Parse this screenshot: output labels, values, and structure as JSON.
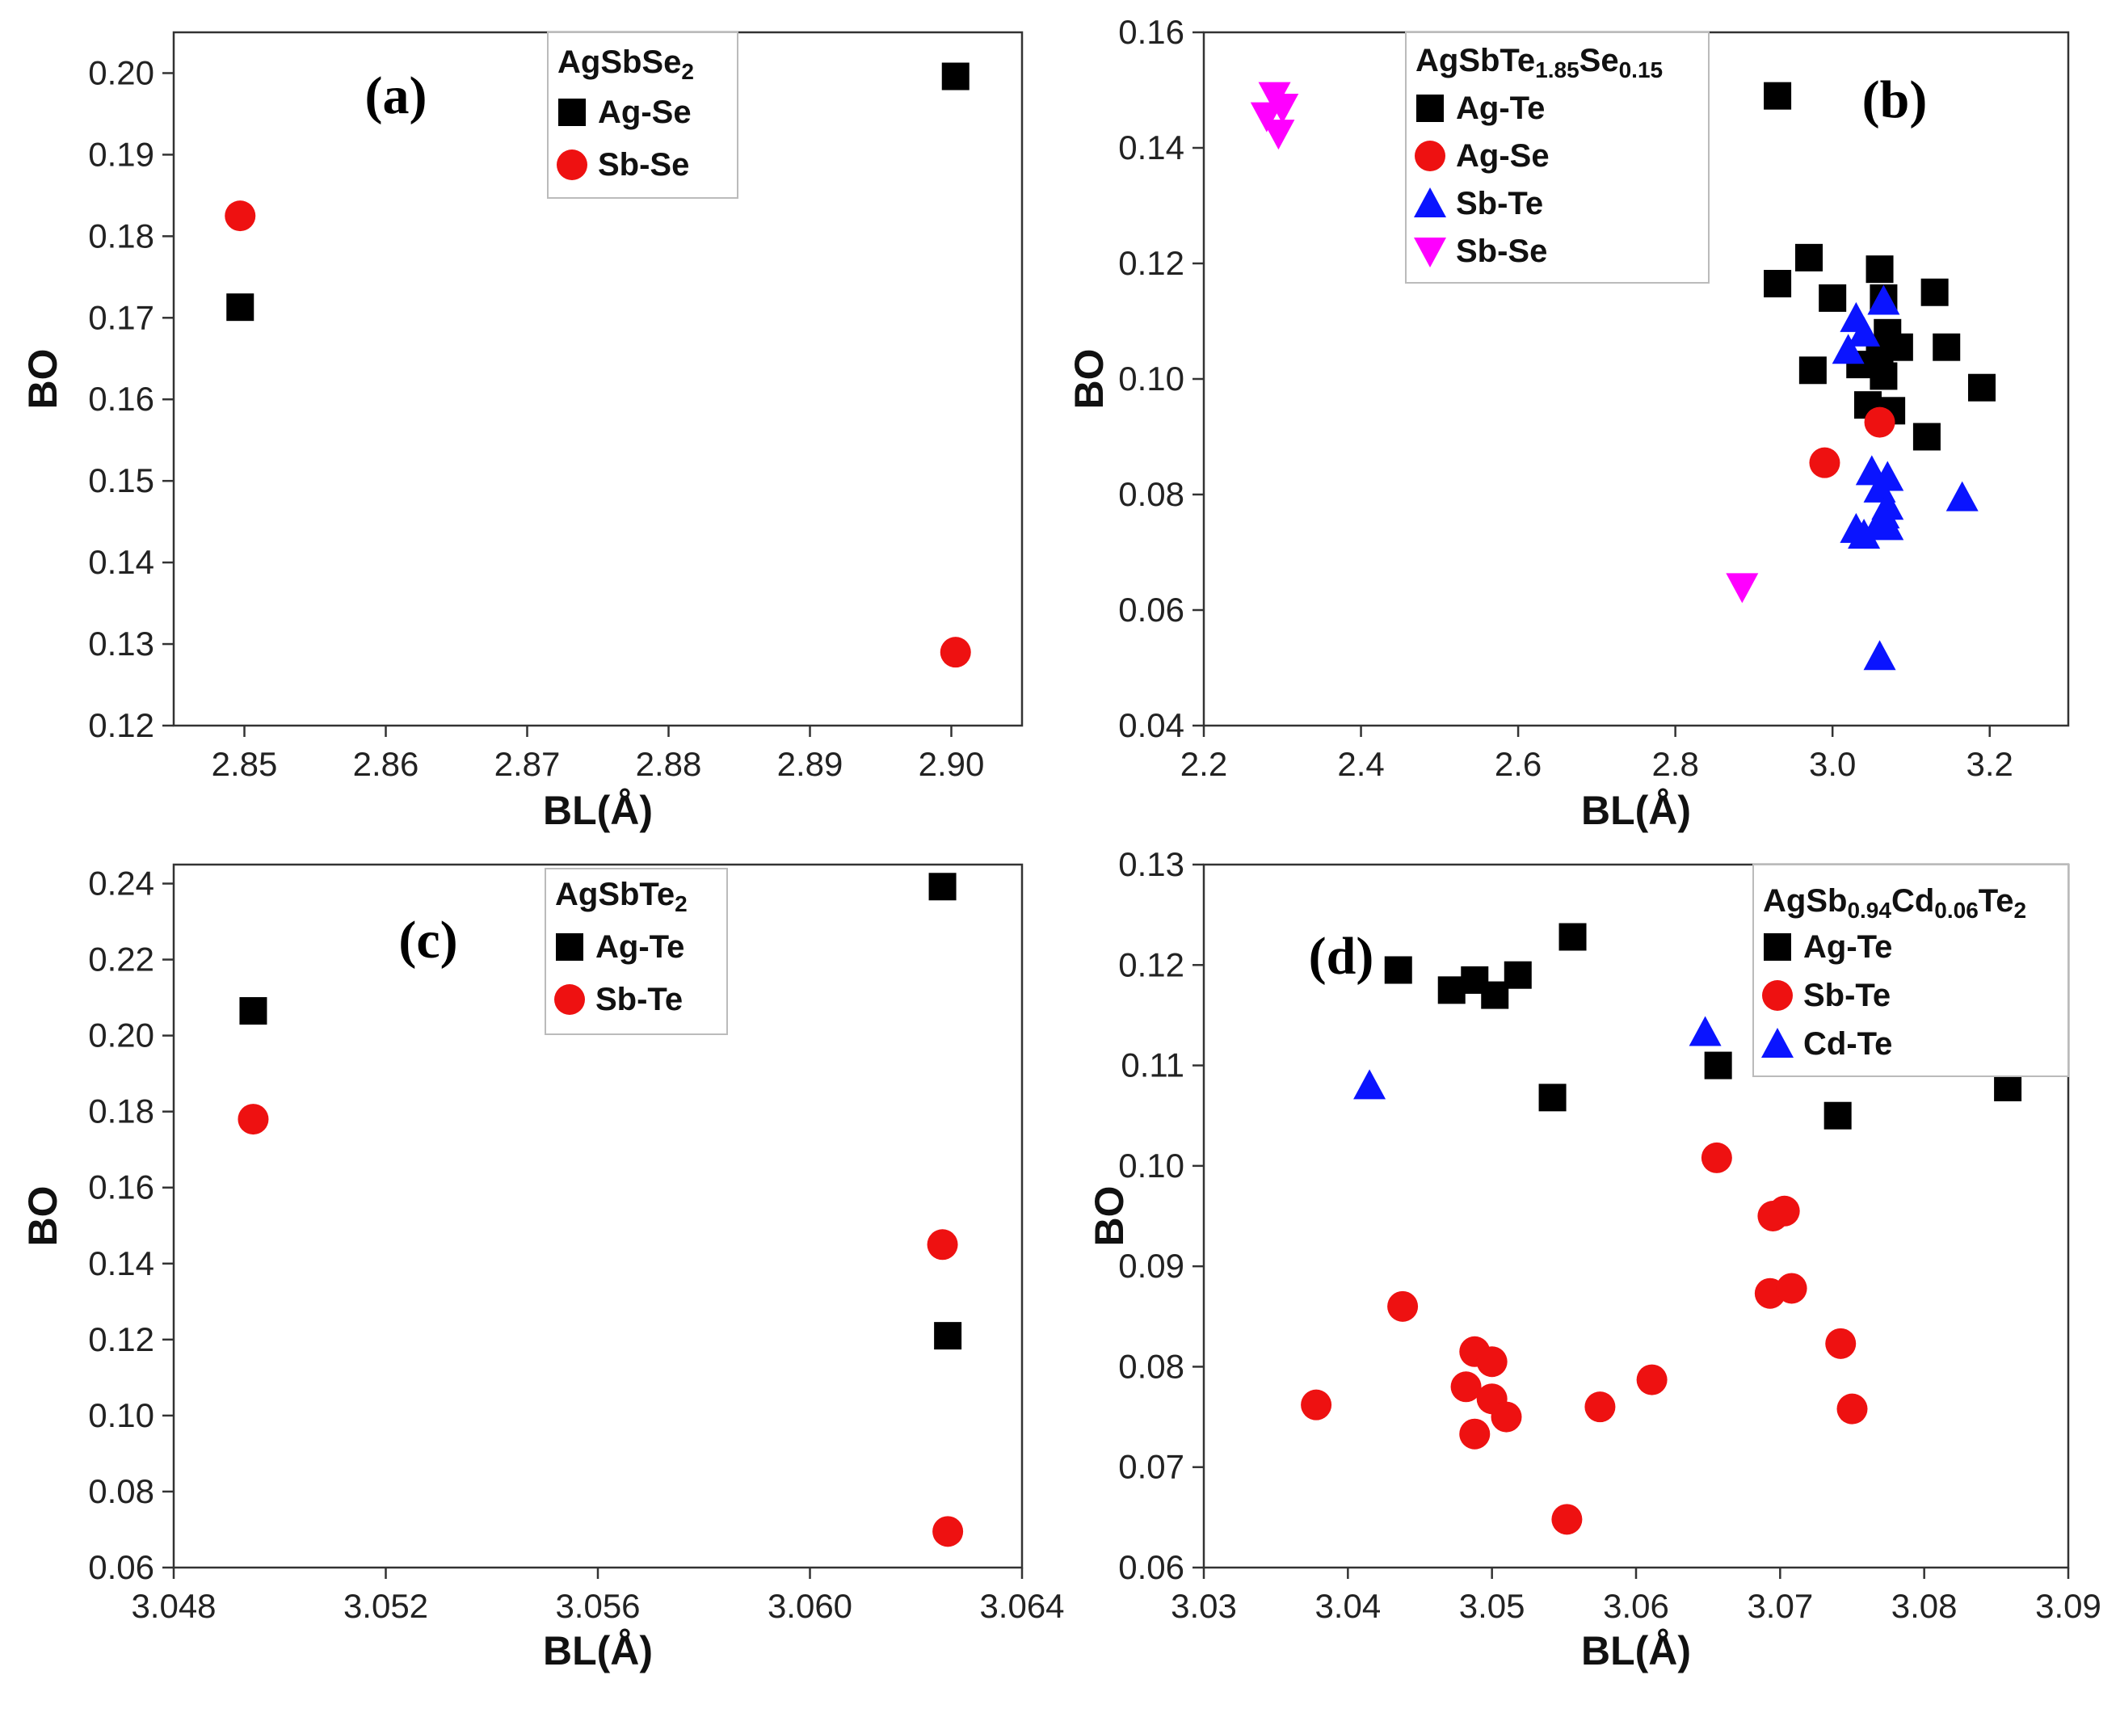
{
  "figure": {
    "background": "#ffffff"
  },
  "colors": {
    "Ag-Se": "#000000",
    "Ag-Te": "#000000",
    "Sb-Se": "#ee1111",
    "Sb-Te": "#ee1111",
    "Cd-Te": "#0a14ff"
  },
  "chart_data": [
    {
      "id": "a",
      "type": "scatter",
      "panel_label": "(a)",
      "legend_title": {
        "main": "AgSbSe",
        "sub": "2",
        "main2": "",
        "sub2": "",
        "main3": ""
      },
      "xlabel": "BL(Å)",
      "ylabel": "BO",
      "xlim": [
        2.845,
        2.905
      ],
      "ylim": [
        0.12,
        0.205
      ],
      "xticks": [
        2.85,
        2.86,
        2.87,
        2.88,
        2.89,
        2.9
      ],
      "xtick_labels": [
        "2.85",
        "2.86",
        "2.87",
        "2.88",
        "2.89",
        "2.90"
      ],
      "yticks": [
        0.12,
        0.13,
        0.14,
        0.15,
        0.16,
        0.17,
        0.18,
        0.19,
        0.2
      ],
      "ytick_labels": [
        "0.12",
        "0.13",
        "0.14",
        "0.15",
        "0.16",
        "0.17",
        "0.18",
        "0.19",
        "0.20"
      ],
      "grid": false,
      "legend_placement": "top-center",
      "series": [
        {
          "name": "Ag-Se",
          "marker": "square",
          "color": "#000000",
          "points": [
            [
              2.8497,
              0.1713
            ],
            [
              2.9003,
              0.1996
            ]
          ]
        },
        {
          "name": "Sb-Se",
          "marker": "circle",
          "color": "#ee1111",
          "points": [
            [
              2.8497,
              0.1825
            ],
            [
              2.9003,
              0.129
            ]
          ]
        }
      ]
    },
    {
      "id": "b",
      "type": "scatter",
      "panel_label": "(b)",
      "legend_title": {
        "main": "AgSbTe",
        "sub": "1.85",
        "main2": "Se",
        "sub2": "0.15",
        "main3": ""
      },
      "xlabel": "BL(Å)",
      "ylabel": "BO",
      "xlim": [
        2.2,
        3.3
      ],
      "ylim": [
        0.04,
        0.16
      ],
      "xticks": [
        2.2,
        2.4,
        2.6,
        2.8,
        3.0,
        3.2
      ],
      "xtick_labels": [
        "2.2",
        "2.4",
        "2.6",
        "2.8",
        "3.0",
        "3.2"
      ],
      "yticks": [
        0.04,
        0.06,
        0.08,
        0.1,
        0.12,
        0.14,
        0.16
      ],
      "ytick_labels": [
        "0.04",
        "0.06",
        "0.08",
        "0.10",
        "0.12",
        "0.14",
        "0.16"
      ],
      "grid": false,
      "legend_placement": "top-center",
      "series": [
        {
          "name": "Ag-Te",
          "marker": "square",
          "color": "#000000",
          "points": [
            [
              2.93,
              0.149
            ],
            [
              2.97,
              0.121
            ],
            [
              2.93,
              0.1165
            ],
            [
              3.0,
              0.114
            ],
            [
              3.06,
              0.119
            ],
            [
              3.065,
              0.114
            ],
            [
              3.13,
              0.115
            ],
            [
              3.07,
              0.108
            ],
            [
              3.085,
              0.1055
            ],
            [
              3.145,
              0.1055
            ],
            [
              3.06,
              0.104
            ],
            [
              2.975,
              0.1015
            ],
            [
              3.035,
              0.1025
            ],
            [
              3.065,
              0.1005
            ],
            [
              3.19,
              0.0985
            ],
            [
              3.045,
              0.0955
            ],
            [
              3.075,
              0.0945
            ],
            [
              3.12,
              0.09
            ]
          ]
        },
        {
          "name": "Ag-Se",
          "marker": "circle",
          "color": "#ee1111",
          "points": [
            [
              2.99,
              0.0855
            ],
            [
              3.06,
              0.0925
            ]
          ]
        },
        {
          "name": "Sb-Te",
          "marker": "triangle-up",
          "color": "#0a14ff",
          "points": [
            [
              3.065,
              0.1135
            ],
            [
              3.03,
              0.1105
            ],
            [
              3.04,
              0.108
            ],
            [
              3.02,
              0.105
            ],
            [
              3.05,
              0.084
            ],
            [
              3.07,
              0.083
            ],
            [
              3.06,
              0.081
            ],
            [
              3.07,
              0.078
            ],
            [
              3.065,
              0.0765
            ],
            [
              3.06,
              0.075
            ],
            [
              3.07,
              0.0745
            ],
            [
              3.03,
              0.074
            ],
            [
              3.04,
              0.073
            ],
            [
              3.165,
              0.0795
            ],
            [
              3.06,
              0.052
            ]
          ]
        },
        {
          "name": "Sb-Se",
          "marker": "triangle-down",
          "color": "#ff00ff",
          "points": [
            [
              2.29,
              0.149
            ],
            [
              2.3,
              0.147
            ],
            [
              2.28,
              0.1455
            ],
            [
              2.295,
              0.1425
            ],
            [
              2.885,
              0.064
            ]
          ]
        }
      ]
    },
    {
      "id": "c",
      "type": "scatter",
      "panel_label": "(c)",
      "legend_title": {
        "main": "AgSbTe",
        "sub": "2",
        "main2": "",
        "sub2": "",
        "main3": ""
      },
      "xlabel": "BL(Å)",
      "ylabel": "BO",
      "xlim": [
        3.048,
        3.064
      ],
      "ylim": [
        0.06,
        0.245
      ],
      "xticks": [
        3.048,
        3.052,
        3.056,
        3.06,
        3.064
      ],
      "xtick_labels": [
        "3.048",
        "3.052",
        "3.056",
        "3.060",
        "3.064"
      ],
      "yticks": [
        0.06,
        0.08,
        0.1,
        0.12,
        0.14,
        0.16,
        0.18,
        0.2,
        0.22,
        0.24
      ],
      "ytick_labels": [
        "0.06",
        "0.08",
        "0.10",
        "0.12",
        "0.14",
        "0.16",
        "0.18",
        "0.20",
        "0.22",
        "0.24"
      ],
      "grid": false,
      "legend_placement": "top-center",
      "series": [
        {
          "name": "Ag-Te",
          "marker": "square",
          "color": "#000000",
          "points": [
            [
              3.0495,
              0.2065
            ],
            [
              3.0625,
              0.2392
            ],
            [
              3.0626,
              0.121
            ]
          ]
        },
        {
          "name": "Sb-Te",
          "marker": "circle",
          "color": "#ee1111",
          "points": [
            [
              3.0495,
              0.178
            ],
            [
              3.0625,
              0.145
            ],
            [
              3.0626,
              0.0695
            ]
          ]
        }
      ]
    },
    {
      "id": "d",
      "type": "scatter",
      "panel_label": "(d)",
      "legend_title": {
        "main": "AgSb",
        "sub": "0.94",
        "main2": "Cd",
        "sub2": "0.06",
        "main3": "Te",
        "sub3": "2"
      },
      "xlabel": "BL(Å)",
      "ylabel": "BO",
      "xlim": [
        3.03,
        3.09
      ],
      "ylim": [
        0.06,
        0.13
      ],
      "xticks": [
        3.03,
        3.04,
        3.05,
        3.06,
        3.07,
        3.08,
        3.09
      ],
      "xtick_labels": [
        "3.03",
        "3.04",
        "3.05",
        "3.06",
        "3.07",
        "3.08",
        "3.09"
      ],
      "yticks": [
        0.06,
        0.07,
        0.08,
        0.09,
        0.1,
        0.11,
        0.12,
        0.13
      ],
      "ytick_labels": [
        "0.06",
        "0.07",
        "0.08",
        "0.09",
        "0.10",
        "0.11",
        "0.12",
        "0.13"
      ],
      "grid": false,
      "legend_placement": "top-right",
      "series": [
        {
          "name": "Ag-Te",
          "marker": "square",
          "color": "#000000",
          "points": [
            [
              3.0435,
              0.1195
            ],
            [
              3.0472,
              0.1175
            ],
            [
              3.0488,
              0.1185
            ],
            [
              3.0502,
              0.117
            ],
            [
              3.0518,
              0.119
            ],
            [
              3.0556,
              0.1228
            ],
            [
              3.0542,
              0.1068
            ],
            [
              3.0657,
              0.11
            ],
            [
              3.074,
              0.105
            ],
            [
              3.0858,
              0.1078
            ]
          ]
        },
        {
          "name": "Sb-Te",
          "marker": "circle",
          "color": "#ee1111",
          "points": [
            [
              3.0378,
              0.0762
            ],
            [
              3.0438,
              0.086
            ],
            [
              3.0488,
              0.0815
            ],
            [
              3.05,
              0.0805
            ],
            [
              3.0482,
              0.078
            ],
            [
              3.05,
              0.0768
            ],
            [
              3.051,
              0.075
            ],
            [
              3.0488,
              0.0733
            ],
            [
              3.0552,
              0.0648
            ],
            [
              3.0575,
              0.076
            ],
            [
              3.0611,
              0.0787
            ],
            [
              3.0656,
              0.1008
            ],
            [
              3.0695,
              0.095
            ],
            [
              3.0703,
              0.0955
            ],
            [
              3.0693,
              0.0873
            ],
            [
              3.0708,
              0.0878
            ],
            [
              3.0742,
              0.0823
            ],
            [
              3.075,
              0.0758
            ]
          ]
        },
        {
          "name": "Cd-Te",
          "marker": "triangle-up",
          "color": "#0a14ff",
          "points": [
            [
              3.0415,
              0.108
            ],
            [
              3.0648,
              0.1133
            ]
          ]
        }
      ]
    }
  ]
}
